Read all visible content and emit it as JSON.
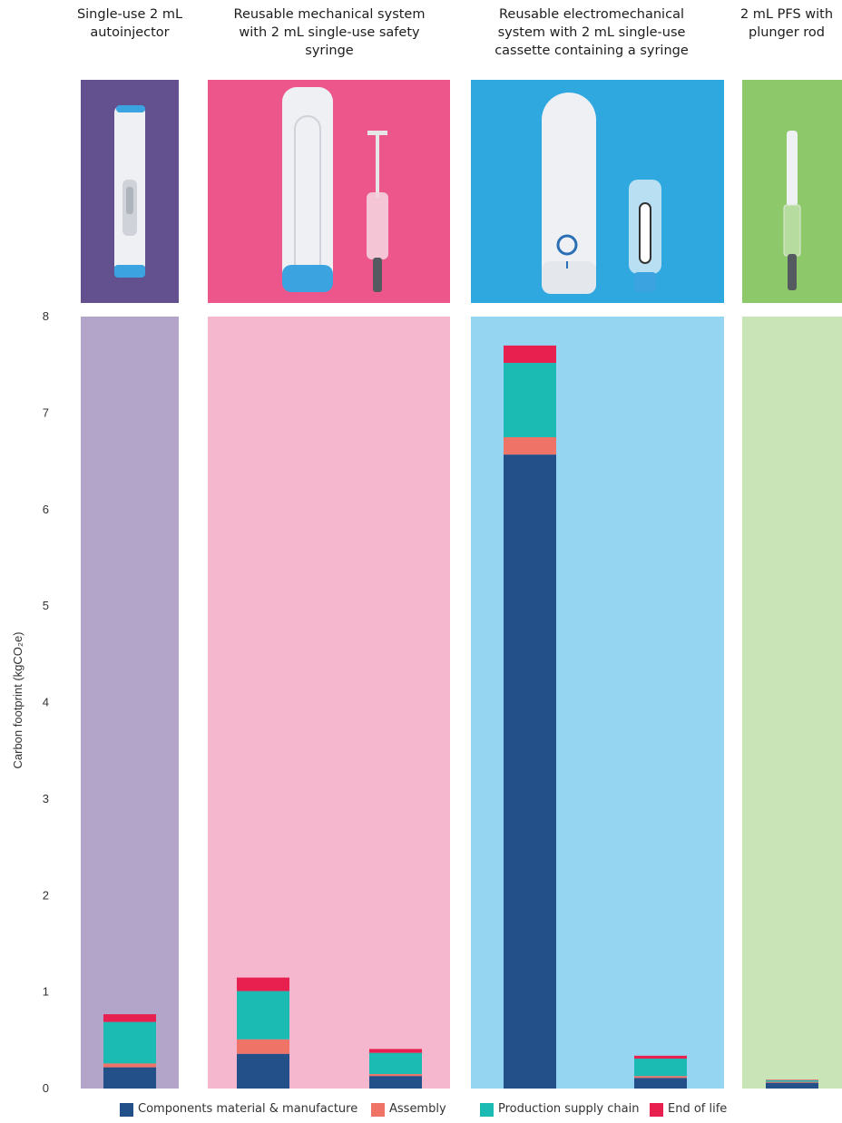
{
  "headings": [
    {
      "line1": "Single-use 2 mL",
      "line2": "autoinjector",
      "line3": ""
    },
    {
      "line1": "Reusable mechanical system",
      "line2": "with 2 mL single-use safety",
      "line3": "syringe"
    },
    {
      "line1": "Reusable electromechanical",
      "line2": "system with 2 mL single-use",
      "line3": "cassette containing a syringe"
    },
    {
      "line1": "2 mL PFS with",
      "line2": "plunger rod",
      "line3": ""
    }
  ],
  "colors": {
    "components": "#235089",
    "assembly": "#ef7367",
    "supply_chain": "#1bbbb4",
    "end_of_life": "#e8204f",
    "panel1_bg": "#b3a5c9",
    "panel1_photo": "#62508f",
    "panel2_bg": "#f5b7cd",
    "panel2_photo": "#ec568a",
    "panel3_bg": "#95d5f2",
    "panel3_photo": "#2ea8df",
    "panel4_bg": "#c9e5b8",
    "panel4_photo": "#8dc86b"
  },
  "photo_icons": [
    "autoinjector-icon",
    "reusable-mechanical-device-icon",
    "safety-syringe-icon",
    "electromechanical-device-icon",
    "cassette-icon",
    "prefilled-syringe-icon"
  ],
  "chart_data": {
    "type": "bar",
    "stacked": true,
    "ylabel": "Carbon footprint (kgCO₂e)",
    "ylim": [
      0,
      8
    ],
    "yticks": [
      0,
      1,
      2,
      3,
      4,
      5,
      6,
      7,
      8
    ],
    "grid": false,
    "legend_placement": "bottom",
    "categories": [
      "Single-use 2 mL autoinjector",
      "Reusable mechanical system",
      "2 mL single-use safety syringe",
      "Reusable electromechanical system",
      "2 mL single-use cassette containing a syringe",
      "2 mL PFS with plunger rod"
    ],
    "series": [
      {
        "name": "Components material & manufacture",
        "values": [
          0.22,
          0.36,
          0.13,
          6.57,
          0.11,
          0.06
        ]
      },
      {
        "name": "Assembly",
        "values": [
          0.04,
          0.15,
          0.02,
          0.18,
          0.02,
          0.01
        ]
      },
      {
        "name": "Production supply chain",
        "values": [
          0.43,
          0.5,
          0.22,
          0.77,
          0.18,
          0.015
        ]
      },
      {
        "name": "End of life",
        "values": [
          0.08,
          0.14,
          0.04,
          0.18,
          0.03,
          0.005
        ]
      }
    ]
  }
}
